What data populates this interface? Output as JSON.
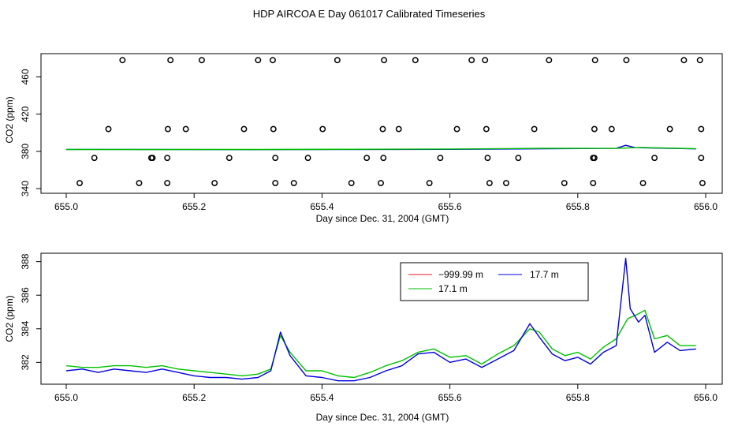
{
  "title": "HDP AIRCOA E  Day 061017  Calibrated Timeseries",
  "colors": {
    "red": "#e41a1c",
    "green": "#00c000",
    "blue": "#0000dd",
    "black": "#000000"
  },
  "chart_data": [
    {
      "type": "scatter",
      "xlabel": "Day since Dec. 31, 2004 (GMT)",
      "ylabel": "CO2 (ppm)",
      "xlim": [
        655.0,
        656.0
      ],
      "ylim": [
        335,
        485
      ],
      "xticks": [
        "655.0",
        "655.2",
        "655.4",
        "655.6",
        "655.8",
        "656.0"
      ],
      "yticks": [
        "340",
        "380",
        "420",
        "460"
      ],
      "grid": false,
      "circles": [
        [
          655.021,
          346
        ],
        [
          655.088,
          478
        ],
        [
          655.163,
          478
        ],
        [
          655.212,
          478
        ],
        [
          655.3,
          478
        ],
        [
          655.323,
          478
        ],
        [
          655.424,
          478
        ],
        [
          655.497,
          478
        ],
        [
          655.546,
          478
        ],
        [
          655.634,
          478
        ],
        [
          655.655,
          478
        ],
        [
          655.755,
          478
        ],
        [
          655.827,
          478
        ],
        [
          655.876,
          478
        ],
        [
          655.966,
          478
        ],
        [
          655.991,
          478
        ],
        [
          655.066,
          404
        ],
        [
          655.159,
          404
        ],
        [
          655.187,
          404
        ],
        [
          655.278,
          404
        ],
        [
          655.324,
          404
        ],
        [
          655.401,
          404
        ],
        [
          655.495,
          404
        ],
        [
          655.52,
          404
        ],
        [
          655.611,
          404
        ],
        [
          655.657,
          404
        ],
        [
          655.732,
          404
        ],
        [
          655.826,
          404
        ],
        [
          655.853,
          404
        ],
        [
          655.944,
          404
        ],
        [
          655.993,
          404
        ],
        [
          655.044,
          373
        ],
        [
          655.133,
          373
        ],
        [
          655.135,
          373
        ],
        [
          655.158,
          373
        ],
        [
          655.255,
          373
        ],
        [
          655.327,
          373
        ],
        [
          655.378,
          373
        ],
        [
          655.47,
          373
        ],
        [
          655.496,
          373
        ],
        [
          655.585,
          373
        ],
        [
          655.659,
          373
        ],
        [
          655.707,
          373
        ],
        [
          655.824,
          373
        ],
        [
          655.826,
          373
        ],
        [
          655.92,
          373
        ],
        [
          655.993,
          373
        ],
        [
          655.114,
          346
        ],
        [
          655.158,
          346
        ],
        [
          655.232,
          346
        ],
        [
          655.327,
          346
        ],
        [
          655.356,
          346
        ],
        [
          655.446,
          346
        ],
        [
          655.492,
          346
        ],
        [
          655.568,
          346
        ],
        [
          655.662,
          346
        ],
        [
          655.688,
          346
        ],
        [
          655.779,
          346
        ],
        [
          655.824,
          346
        ],
        [
          655.902,
          346
        ],
        [
          655.995,
          346
        ]
      ],
      "series": [
        {
          "name": "",
          "color": "blue",
          "values": [
            [
              655.0,
              382.1
            ],
            [
              655.3,
              381.9
            ],
            [
              655.6,
              382.2
            ],
            [
              655.75,
              382.8
            ],
            [
              655.86,
              383.2
            ],
            [
              655.875,
              386.5
            ],
            [
              655.89,
              384.0
            ],
            [
              655.985,
              382.7
            ]
          ]
        },
        {
          "name": "",
          "color": "green",
          "values": [
            [
              655.0,
              382.0
            ],
            [
              655.3,
              382.0
            ],
            [
              655.6,
              382.5
            ],
            [
              655.75,
              383.3
            ],
            [
              655.86,
              383.2
            ],
            [
              655.9,
              384.2
            ],
            [
              655.985,
              382.9
            ]
          ]
        }
      ]
    },
    {
      "type": "line",
      "xlabel": "Day since Dec. 31, 2004 (GMT)",
      "ylabel": "CO2 (ppm)",
      "xlim": [
        655.0,
        656.0
      ],
      "ylim": [
        380.7,
        388.5
      ],
      "xticks": [
        "655.0",
        "655.2",
        "655.4",
        "655.6",
        "655.8",
        "656.0"
      ],
      "yticks": [
        "382",
        "384",
        "386",
        "388"
      ],
      "grid": false,
      "legend": "top-right",
      "series": [
        {
          "name": "−999.99 m",
          "color": "red",
          "values": []
        },
        {
          "name": "17.1 m",
          "color": "green",
          "values": [
            [
              655.0,
              381.8
            ],
            [
              655.025,
              381.7
            ],
            [
              655.05,
              381.7
            ],
            [
              655.075,
              381.8
            ],
            [
              655.1,
              381.8
            ],
            [
              655.125,
              381.7
            ],
            [
              655.15,
              381.8
            ],
            [
              655.175,
              381.6
            ],
            [
              655.2,
              381.5
            ],
            [
              655.225,
              381.4
            ],
            [
              655.25,
              381.3
            ],
            [
              655.275,
              381.2
            ],
            [
              655.3,
              381.3
            ],
            [
              655.32,
              381.6
            ],
            [
              655.335,
              383.6
            ],
            [
              655.35,
              382.6
            ],
            [
              655.375,
              381.5
            ],
            [
              655.4,
              381.5
            ],
            [
              655.425,
              381.2
            ],
            [
              655.45,
              381.1
            ],
            [
              655.475,
              381.4
            ],
            [
              655.5,
              381.8
            ],
            [
              655.525,
              382.1
            ],
            [
              655.55,
              382.6
            ],
            [
              655.575,
              382.8
            ],
            [
              655.6,
              382.3
            ],
            [
              655.625,
              382.4
            ],
            [
              655.65,
              381.9
            ],
            [
              655.675,
              382.5
            ],
            [
              655.7,
              383.0
            ],
            [
              655.725,
              384.0
            ],
            [
              655.74,
              383.8
            ],
            [
              655.76,
              382.8
            ],
            [
              655.78,
              382.4
            ],
            [
              655.8,
              382.6
            ],
            [
              655.82,
              382.2
            ],
            [
              655.84,
              382.9
            ],
            [
              655.86,
              383.4
            ],
            [
              655.878,
              384.6
            ],
            [
              655.89,
              384.8
            ],
            [
              655.905,
              385.1
            ],
            [
              655.92,
              383.4
            ],
            [
              655.94,
              383.6
            ],
            [
              655.96,
              383.0
            ],
            [
              655.985,
              383.0
            ]
          ]
        },
        {
          "name": "17.7 m",
          "color": "blue",
          "values": [
            [
              655.0,
              381.5
            ],
            [
              655.025,
              381.6
            ],
            [
              655.05,
              381.4
            ],
            [
              655.075,
              381.6
            ],
            [
              655.1,
              381.5
            ],
            [
              655.125,
              381.4
            ],
            [
              655.15,
              381.6
            ],
            [
              655.175,
              381.4
            ],
            [
              655.2,
              381.2
            ],
            [
              655.225,
              381.1
            ],
            [
              655.25,
              381.1
            ],
            [
              655.275,
              381.0
            ],
            [
              655.3,
              381.1
            ],
            [
              655.32,
              381.5
            ],
            [
              655.335,
              383.8
            ],
            [
              655.35,
              382.4
            ],
            [
              655.375,
              381.2
            ],
            [
              655.4,
              381.1
            ],
            [
              655.425,
              380.9
            ],
            [
              655.45,
              380.9
            ],
            [
              655.475,
              381.1
            ],
            [
              655.5,
              381.5
            ],
            [
              655.525,
              381.8
            ],
            [
              655.55,
              382.5
            ],
            [
              655.575,
              382.6
            ],
            [
              655.6,
              382.0
            ],
            [
              655.625,
              382.2
            ],
            [
              655.65,
              381.7
            ],
            [
              655.675,
              382.2
            ],
            [
              655.7,
              382.7
            ],
            [
              655.725,
              384.3
            ],
            [
              655.74,
              383.5
            ],
            [
              655.76,
              382.5
            ],
            [
              655.78,
              382.1
            ],
            [
              655.8,
              382.3
            ],
            [
              655.82,
              381.9
            ],
            [
              655.84,
              382.6
            ],
            [
              655.86,
              383.0
            ],
            [
              655.875,
              388.2
            ],
            [
              655.882,
              385.2
            ],
            [
              655.895,
              384.4
            ],
            [
              655.905,
              384.8
            ],
            [
              655.92,
              382.6
            ],
            [
              655.94,
              383.2
            ],
            [
              655.96,
              382.7
            ],
            [
              655.985,
              382.8
            ]
          ]
        }
      ]
    }
  ]
}
